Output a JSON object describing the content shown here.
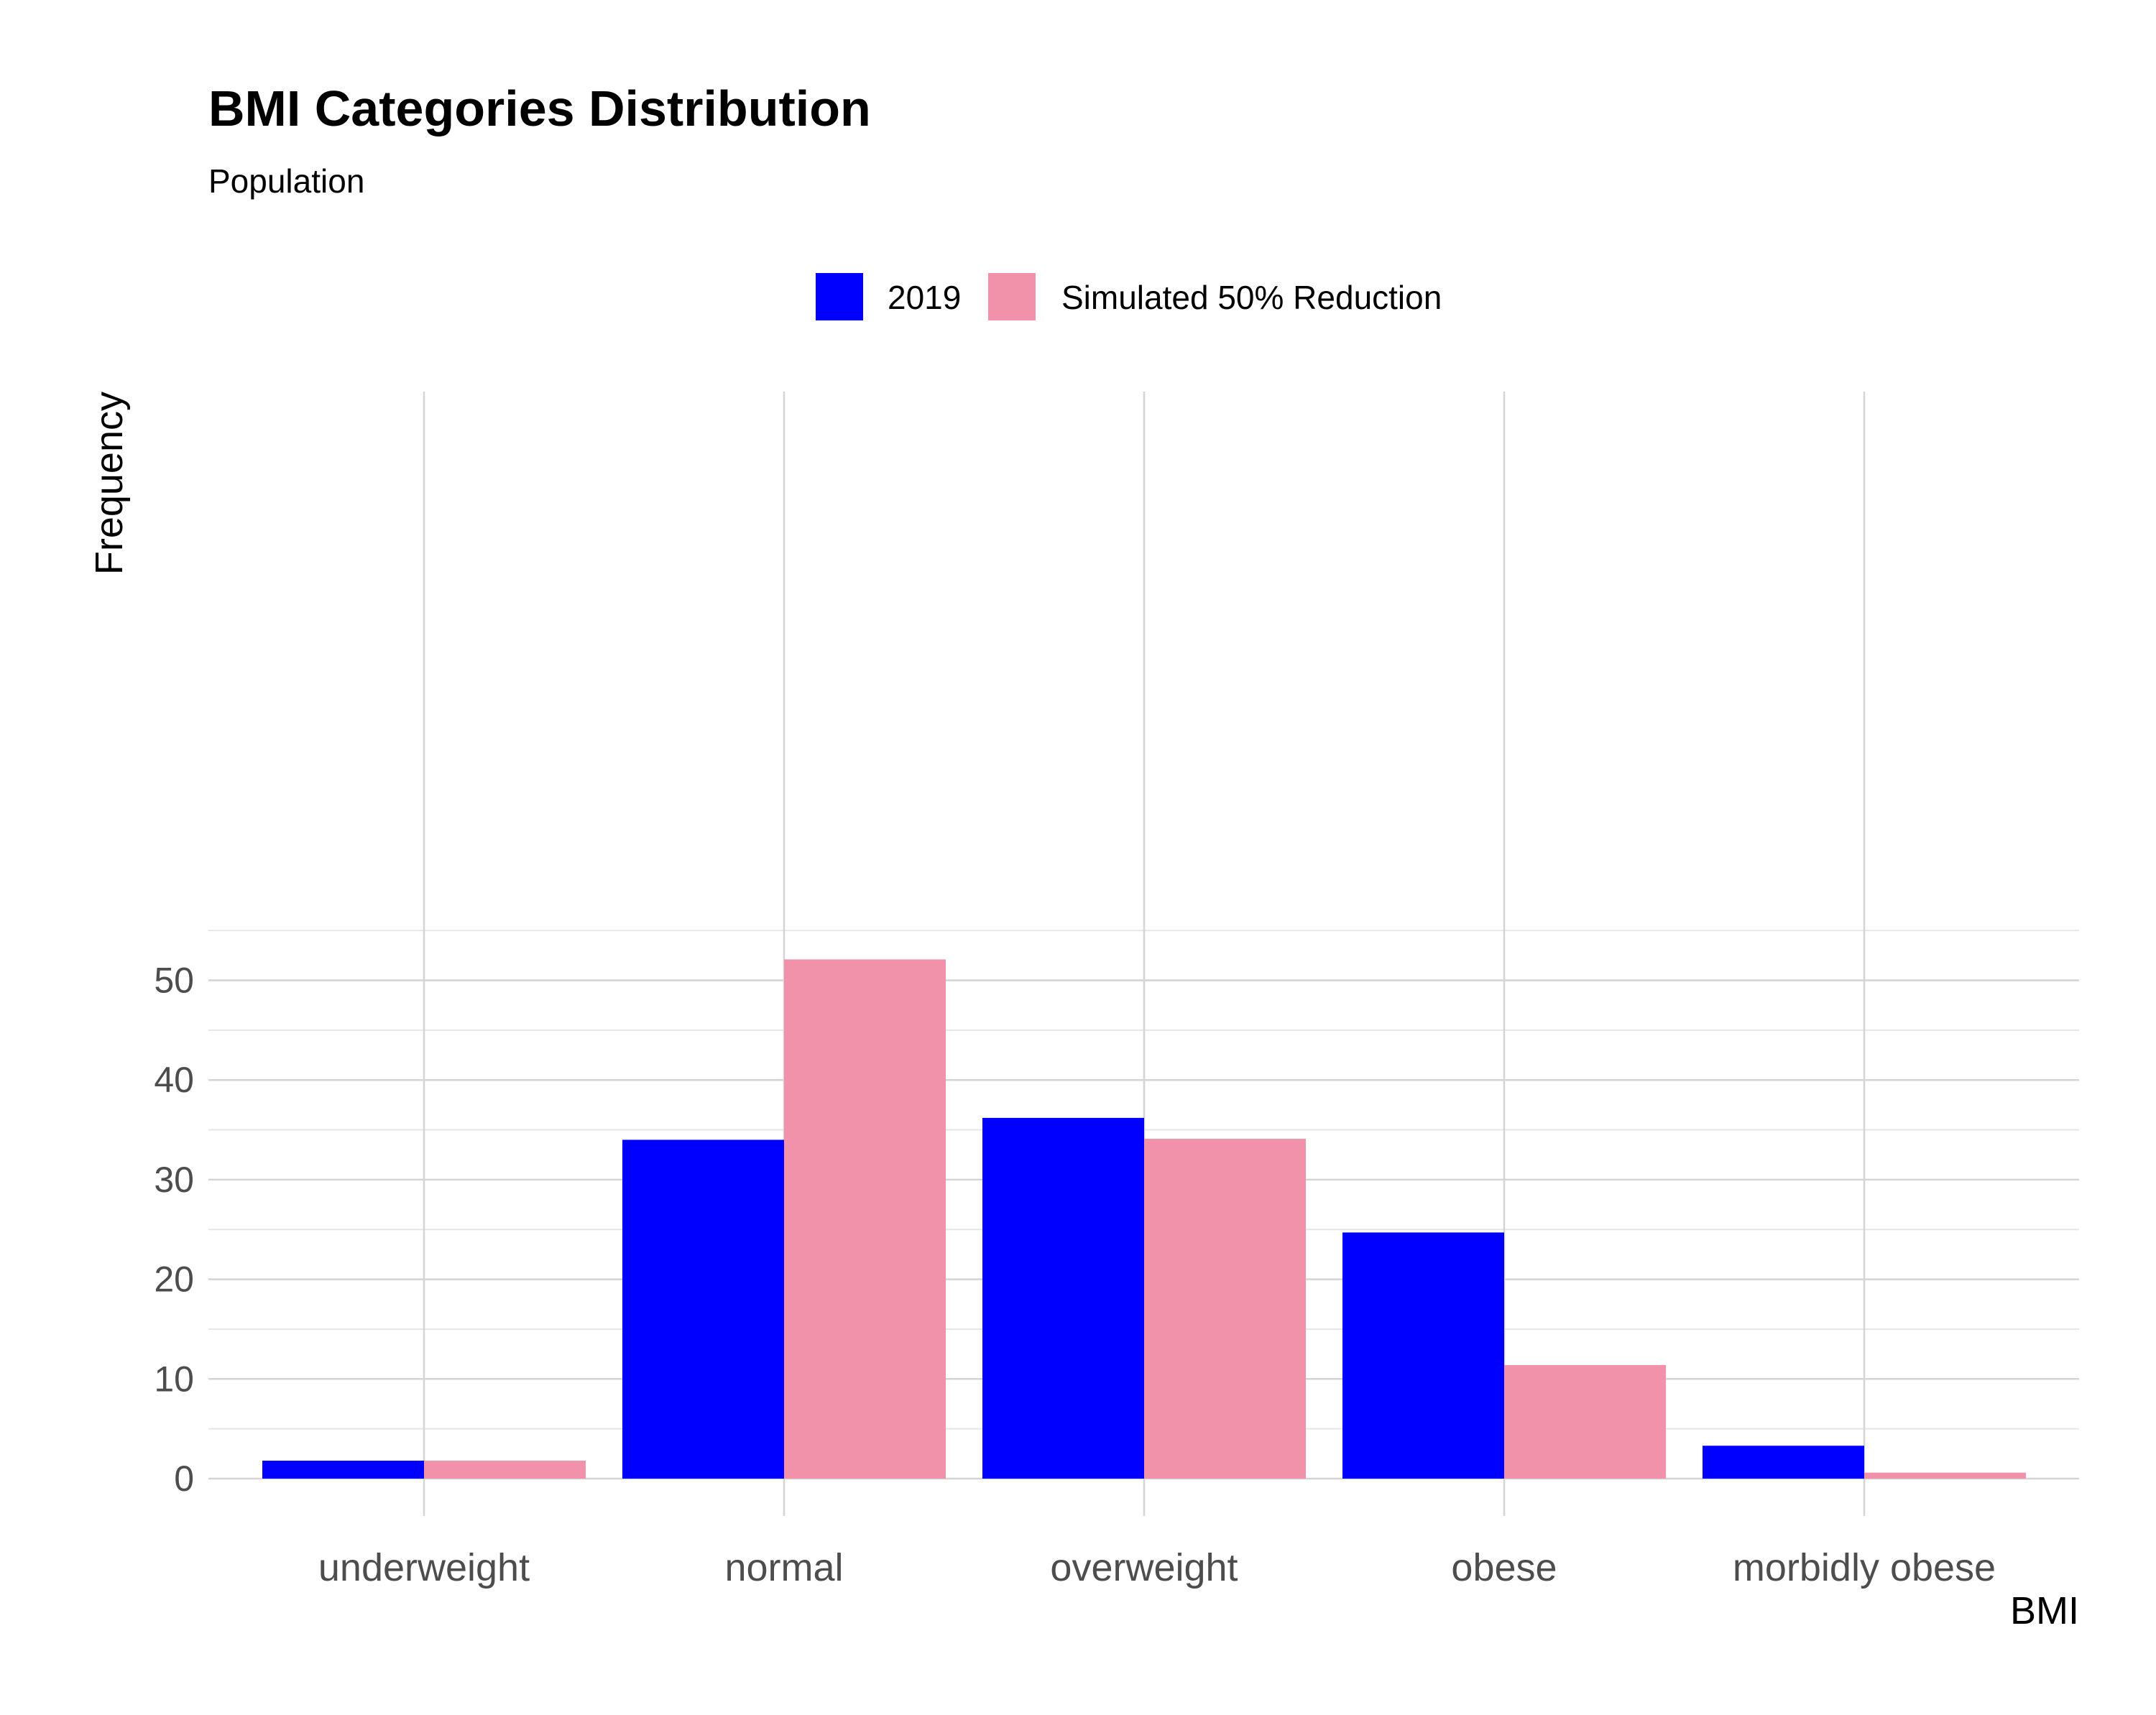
{
  "chart_data": {
    "type": "bar",
    "title": "BMI Categories Distribution",
    "subtitle": "Population",
    "xlabel": "BMI",
    "ylabel": "Frequency",
    "categories": [
      "underweight",
      "normal",
      "overweight",
      "obese",
      "morbidly obese"
    ],
    "series": [
      {
        "name": "2019",
        "color": "#0000ff",
        "values": [
          1.8,
          34.0,
          36.2,
          24.7,
          3.3
        ]
      },
      {
        "name": "Simulated 50% Reduction",
        "color": "#f291aa",
        "values": [
          1.8,
          52.1,
          34.1,
          11.4,
          0.6
        ]
      }
    ],
    "ylim": [
      0,
      55
    ],
    "yticks": [
      0,
      10,
      20,
      30,
      40,
      50
    ],
    "grid": true,
    "legend_position": "top"
  }
}
